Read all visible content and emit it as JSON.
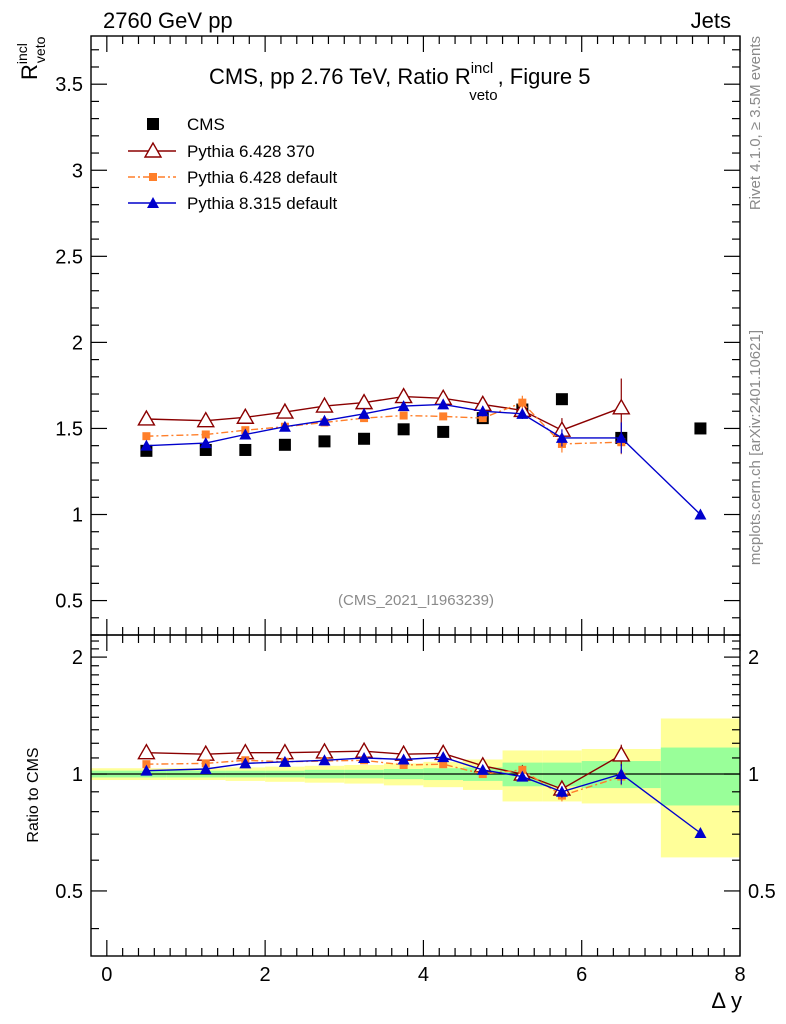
{
  "header": {
    "left": "2760 GeV pp",
    "right": "Jets"
  },
  "side_text": {
    "rivet": "Rivet 4.1.0, ≥ 3.5M events",
    "mcplots": "mcplots.cern.ch [arXiv:2401.10621]"
  },
  "watermark": "(CMS_2021_I1963239)",
  "chart_data": [
    {
      "type": "scatter",
      "panel": "main",
      "title": {
        "prefix": "CMS, pp 2.76 TeV, Ratio R",
        "sup": "incl",
        "sub": "veto",
        "suffix": ", Figure 5"
      },
      "ylabel": {
        "base": "R",
        "sup": "incl",
        "sub": "veto"
      },
      "xlabel": "Δ y",
      "xlim": [
        -0.2,
        8.0
      ],
      "ylim": [
        0.3,
        3.78
      ],
      "xticks": [
        "0",
        "2",
        "4",
        "6",
        "8"
      ],
      "yticks": [
        "0.5",
        "1",
        "1.5",
        "2",
        "2.5",
        "3",
        "3.5"
      ],
      "legend": [
        "CMS",
        "Pythia 6.428 370",
        "Pythia 6.428 default",
        "Pythia 8.315 default"
      ],
      "series": [
        {
          "name": "CMS",
          "color": "#000000",
          "marker": "square",
          "line": "none",
          "x": [
            0.5,
            1.25,
            1.75,
            2.25,
            2.75,
            3.25,
            3.75,
            4.25,
            4.75,
            5.25,
            5.75,
            6.5,
            7.5
          ],
          "y": [
            1.37,
            1.375,
            1.375,
            1.405,
            1.425,
            1.44,
            1.495,
            1.48,
            1.56,
            1.61,
            1.67,
            1.445,
            1.5
          ]
        },
        {
          "name": "Pythia 6.428 370",
          "color": "#8b0000",
          "marker": "open-triangle",
          "line": "solid",
          "x": [
            0.5,
            1.25,
            1.75,
            2.25,
            2.75,
            3.25,
            3.75,
            4.25,
            4.75,
            5.25,
            5.75,
            6.5
          ],
          "y": [
            1.555,
            1.545,
            1.565,
            1.595,
            1.63,
            1.65,
            1.685,
            1.675,
            1.64,
            1.605,
            1.49,
            1.62
          ],
          "err": [
            0,
            0,
            0,
            0,
            0,
            0,
            0,
            0,
            0.04,
            0.03,
            0.07,
            0.17
          ]
        },
        {
          "name": "Pythia 6.428 default",
          "color": "#ff7f2a",
          "marker": "small-square",
          "line": "dashdot",
          "x": [
            0.5,
            1.25,
            1.75,
            2.25,
            2.75,
            3.25,
            3.75,
            4.25,
            4.75,
            5.25,
            5.75,
            6.5
          ],
          "y": [
            1.455,
            1.465,
            1.49,
            1.51,
            1.535,
            1.56,
            1.575,
            1.57,
            1.56,
            1.65,
            1.41,
            1.42
          ],
          "err": [
            0,
            0,
            0,
            0,
            0,
            0,
            0,
            0,
            0.02,
            0.04,
            0.05,
            0.07
          ]
        },
        {
          "name": "Pythia 8.315 default",
          "color": "#0000cc",
          "marker": "triangle",
          "line": "solid",
          "x": [
            0.5,
            1.25,
            1.75,
            2.25,
            2.75,
            3.25,
            3.75,
            4.25,
            4.75,
            5.25,
            5.75,
            6.5,
            7.5
          ],
          "y": [
            1.4,
            1.415,
            1.465,
            1.51,
            1.545,
            1.585,
            1.63,
            1.64,
            1.6,
            1.585,
            1.445,
            1.445,
            1.0
          ],
          "err": [
            0,
            0,
            0,
            0,
            0,
            0,
            0,
            0,
            0.03,
            0.03,
            0.05,
            0.09,
            0
          ]
        }
      ]
    },
    {
      "type": "scatter",
      "panel": "ratio",
      "ylabel": "Ratio to CMS",
      "xlim": [
        -0.2,
        8.0
      ],
      "ylim": [
        0.34,
        2.28
      ],
      "yticks": [
        "0.5",
        "1",
        "2"
      ],
      "bands": {
        "edges": [
          -0.2,
          0.75,
          1.5,
          2.0,
          2.5,
          3.0,
          3.5,
          4.0,
          4.5,
          5.0,
          5.5,
          6.0,
          7.0,
          8.0
        ],
        "green_half": [
          0.02,
          0.02,
          0.02,
          0.02,
          0.025,
          0.025,
          0.03,
          0.035,
          0.04,
          0.07,
          0.07,
          0.08,
          0.17
        ],
        "yellow_half": [
          0.035,
          0.035,
          0.04,
          0.045,
          0.05,
          0.055,
          0.065,
          0.075,
          0.09,
          0.15,
          0.15,
          0.16,
          0.39
        ]
      },
      "series": [
        {
          "name": "Pythia 6.428 370",
          "color": "#8b0000",
          "marker": "open-triangle",
          "line": "solid",
          "x": [
            0.5,
            1.25,
            1.75,
            2.25,
            2.75,
            3.25,
            3.75,
            4.25,
            4.75,
            5.25,
            5.75,
            6.5
          ],
          "y": [
            1.135,
            1.125,
            1.135,
            1.135,
            1.14,
            1.145,
            1.125,
            1.13,
            1.05,
            1.0,
            0.915,
            1.12
          ],
          "err": [
            0,
            0,
            0,
            0,
            0,
            0,
            0,
            0,
            0.03,
            0.03,
            0.04,
            0.07
          ]
        },
        {
          "name": "Pythia 6.428 default",
          "color": "#ff7f2a",
          "marker": "small-square",
          "line": "dashdot",
          "x": [
            0.5,
            1.25,
            1.75,
            2.25,
            2.75,
            3.25,
            3.75,
            4.25,
            4.75,
            5.25,
            5.75,
            6.5
          ],
          "y": [
            1.06,
            1.065,
            1.085,
            1.075,
            1.08,
            1.085,
            1.055,
            1.06,
            1.0,
            1.025,
            0.88,
            0.985
          ],
          "err": [
            0,
            0,
            0,
            0,
            0,
            0,
            0,
            0,
            0.02,
            0.02,
            0.03,
            0.05
          ]
        },
        {
          "name": "Pythia 8.315 default",
          "color": "#0000cc",
          "marker": "triangle",
          "line": "solid",
          "x": [
            0.5,
            1.25,
            1.75,
            2.25,
            2.75,
            3.25,
            3.75,
            4.25,
            4.75,
            5.25,
            5.75,
            6.5,
            7.5
          ],
          "y": [
            1.02,
            1.03,
            1.065,
            1.075,
            1.085,
            1.1,
            1.09,
            1.105,
            1.025,
            0.985,
            0.9,
            1.0,
            0.705
          ],
          "err": [
            0,
            0,
            0,
            0,
            0,
            0,
            0,
            0,
            0.02,
            0.02,
            0.03,
            0.06,
            0
          ]
        }
      ]
    }
  ]
}
